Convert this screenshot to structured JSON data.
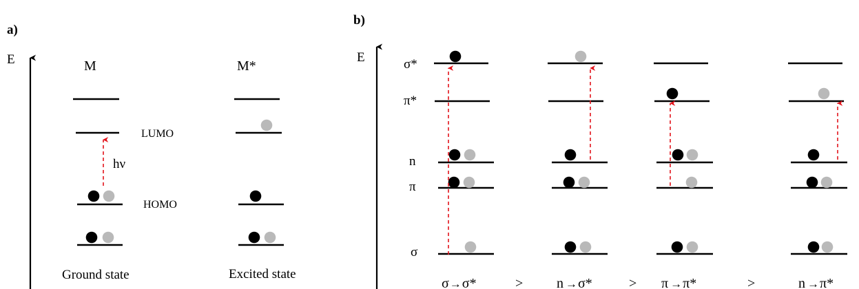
{
  "colors": {
    "electron_filled": "#000000",
    "electron_empty": "#b9b9b9",
    "excitation_arrow": "#e3131b"
  },
  "panel_a": {
    "tag": "a)",
    "axis_label": "E",
    "left_title": "M",
    "right_title": "M*",
    "lumo_label": "LUMO",
    "homo_label": "HOMO",
    "photon_label": "hν",
    "left_caption": "Ground state",
    "right_caption": "Excited state"
  },
  "panel_b": {
    "tag": "b)",
    "axis_label": "E",
    "level_labels": {
      "sigma_star": "σ*",
      "pi_star": "π*",
      "n": "n",
      "pi": "π",
      "sigma": "σ"
    },
    "transitions": [
      {
        "from": "σ",
        "arrow": "→",
        "to": "σ*"
      },
      {
        "from": "n",
        "arrow": "→",
        "to": "σ*"
      },
      {
        "from": "π",
        "arrow": "→",
        "to": "π*"
      },
      {
        "from": "n",
        "arrow": "→",
        "to": "π*"
      }
    ],
    "comparators": [
      ">",
      ">",
      ">"
    ]
  }
}
